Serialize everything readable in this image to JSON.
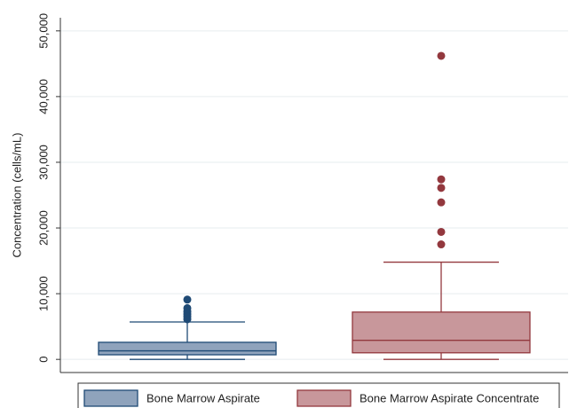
{
  "chart_data": {
    "type": "box",
    "y_label": "Concentration (cells/mL)",
    "ylim": [
      -2000,
      52000
    ],
    "yticks": [
      0,
      {
        "value": 10000,
        "label": "10,000"
      },
      {
        "value": 20000,
        "label": "20,000"
      },
      {
        "value": 30000,
        "label": "30,000"
      },
      {
        "value": 40000,
        "label": "40,000"
      },
      {
        "value": 50000,
        "label": "50,000"
      }
    ],
    "grid": true,
    "legend": "bottom",
    "series": [
      {
        "name": "Bone Marrow Aspirate",
        "color": "#8fa3bc",
        "edge": "#1f4a75",
        "whislo": 0,
        "q1": 700,
        "med": 1300,
        "q3": 2600,
        "whishi": 5700,
        "fliers": [
          9100,
          7800,
          7300,
          6900,
          6500,
          6100
        ]
      },
      {
        "name": "Bone Marrow Aspirate Concentrate",
        "color": "#c8979b",
        "edge": "#93383e",
        "whislo": 0,
        "q1": 1000,
        "med": 2900,
        "q3": 7200,
        "whishi": 14800,
        "fliers": [
          46200,
          27400,
          26100,
          23900,
          19400,
          17500
        ]
      }
    ]
  }
}
